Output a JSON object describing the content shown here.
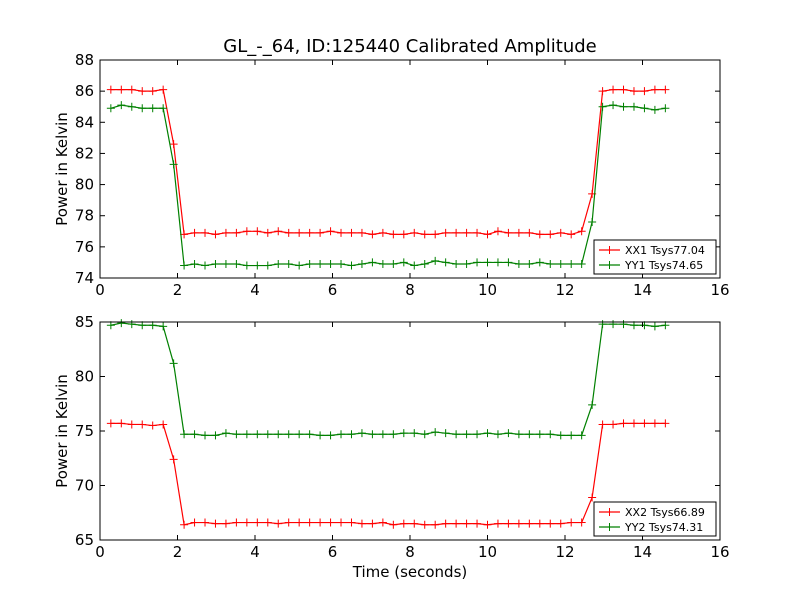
{
  "title": "GL_-_64, ID:125440 Calibrated Amplitude",
  "colors": {
    "xx": "#ff0000",
    "yy": "#008000",
    "frame": "#000000",
    "background": "#ffffff"
  },
  "chart_data": [
    {
      "type": "line",
      "ylabel": "Power in Kelvin",
      "xlabel": "",
      "xlim": [
        0,
        16
      ],
      "ylim": [
        74,
        88
      ],
      "xticks": [
        0,
        2,
        4,
        6,
        8,
        10,
        12,
        14,
        16
      ],
      "yticks": [
        74,
        76,
        78,
        80,
        82,
        84,
        86,
        88
      ],
      "grid": false,
      "legend_position": "lower-right",
      "marker": "+",
      "x": [
        0.28,
        0.55,
        0.82,
        1.09,
        1.36,
        1.63,
        1.9,
        2.17,
        2.44,
        2.71,
        2.98,
        3.25,
        3.52,
        3.79,
        4.06,
        4.33,
        4.6,
        4.87,
        5.14,
        5.41,
        5.68,
        5.95,
        6.22,
        6.49,
        6.76,
        7.03,
        7.3,
        7.57,
        7.84,
        8.11,
        8.38,
        8.65,
        8.92,
        9.19,
        9.46,
        9.73,
        10.0,
        10.27,
        10.54,
        10.81,
        11.08,
        11.35,
        11.62,
        11.89,
        12.16,
        12.43,
        12.7,
        12.97,
        13.24,
        13.51,
        13.78,
        14.05,
        14.32,
        14.59
      ],
      "series": [
        {
          "name": "XX1 Tsys77.04",
          "color": "#ff0000",
          "values": [
            86.1,
            86.1,
            86.1,
            86.0,
            86.0,
            86.1,
            82.6,
            76.8,
            76.9,
            76.9,
            76.8,
            76.9,
            76.9,
            77.0,
            77.0,
            76.9,
            77.0,
            76.9,
            76.9,
            76.9,
            76.9,
            77.0,
            76.9,
            76.9,
            76.9,
            76.8,
            76.9,
            76.8,
            76.8,
            76.9,
            76.8,
            76.8,
            76.9,
            76.9,
            76.9,
            76.9,
            76.8,
            77.0,
            76.9,
            76.9,
            76.9,
            76.8,
            76.8,
            76.9,
            76.8,
            77.0,
            79.4,
            86.0,
            86.1,
            86.1,
            86.0,
            86.0,
            86.1,
            86.1
          ]
        },
        {
          "name": "YY1 Tsys74.65",
          "color": "#008000",
          "values": [
            84.9,
            85.1,
            85.0,
            84.9,
            84.9,
            84.9,
            81.3,
            74.8,
            74.9,
            74.8,
            74.9,
            74.9,
            74.9,
            74.8,
            74.8,
            74.8,
            74.9,
            74.9,
            74.8,
            74.9,
            74.9,
            74.9,
            74.9,
            74.8,
            74.9,
            75.0,
            74.9,
            74.9,
            75.0,
            74.8,
            74.9,
            75.1,
            75.0,
            74.9,
            74.9,
            75.0,
            75.0,
            75.0,
            75.0,
            74.9,
            74.9,
            75.0,
            74.9,
            74.9,
            74.9,
            74.9,
            77.6,
            85.0,
            85.1,
            85.0,
            85.0,
            84.9,
            84.8,
            84.9
          ]
        }
      ]
    },
    {
      "type": "line",
      "ylabel": "Power in Kelvin",
      "xlabel": "Time (seconds)",
      "xlim": [
        0,
        16
      ],
      "ylim": [
        65,
        85
      ],
      "xticks": [
        0,
        2,
        4,
        6,
        8,
        10,
        12,
        14,
        16
      ],
      "yticks": [
        65,
        70,
        75,
        80,
        85
      ],
      "grid": false,
      "legend_position": "lower-right",
      "marker": "+",
      "x": [
        0.28,
        0.55,
        0.82,
        1.09,
        1.36,
        1.63,
        1.9,
        2.17,
        2.44,
        2.71,
        2.98,
        3.25,
        3.52,
        3.79,
        4.06,
        4.33,
        4.6,
        4.87,
        5.14,
        5.41,
        5.68,
        5.95,
        6.22,
        6.49,
        6.76,
        7.03,
        7.3,
        7.57,
        7.84,
        8.11,
        8.38,
        8.65,
        8.92,
        9.19,
        9.46,
        9.73,
        10.0,
        10.27,
        10.54,
        10.81,
        11.08,
        11.35,
        11.62,
        11.89,
        12.16,
        12.43,
        12.7,
        12.97,
        13.24,
        13.51,
        13.78,
        14.05,
        14.32,
        14.59
      ],
      "series": [
        {
          "name": "XX2 Tsys66.89",
          "color": "#ff0000",
          "values": [
            75.7,
            75.7,
            75.6,
            75.6,
            75.5,
            75.6,
            72.4,
            66.4,
            66.6,
            66.6,
            66.5,
            66.5,
            66.6,
            66.6,
            66.6,
            66.6,
            66.5,
            66.6,
            66.6,
            66.6,
            66.6,
            66.6,
            66.6,
            66.6,
            66.5,
            66.5,
            66.6,
            66.4,
            66.5,
            66.5,
            66.4,
            66.4,
            66.5,
            66.5,
            66.5,
            66.5,
            66.4,
            66.5,
            66.5,
            66.5,
            66.5,
            66.5,
            66.5,
            66.5,
            66.6,
            66.6,
            68.9,
            75.6,
            75.6,
            75.7,
            75.7,
            75.7,
            75.7,
            75.7
          ]
        },
        {
          "name": "YY2 Tsys74.31",
          "color": "#008000",
          "values": [
            84.7,
            84.9,
            84.8,
            84.7,
            84.7,
            84.6,
            81.2,
            74.7,
            74.7,
            74.6,
            74.6,
            74.8,
            74.7,
            74.7,
            74.7,
            74.7,
            74.7,
            74.7,
            74.7,
            74.7,
            74.6,
            74.6,
            74.7,
            74.7,
            74.8,
            74.7,
            74.7,
            74.7,
            74.8,
            74.8,
            74.7,
            74.9,
            74.8,
            74.7,
            74.7,
            74.7,
            74.8,
            74.7,
            74.8,
            74.7,
            74.7,
            74.7,
            74.7,
            74.6,
            74.6,
            74.6,
            77.4,
            84.8,
            84.8,
            84.8,
            84.7,
            84.7,
            84.6,
            84.7
          ]
        }
      ]
    }
  ]
}
